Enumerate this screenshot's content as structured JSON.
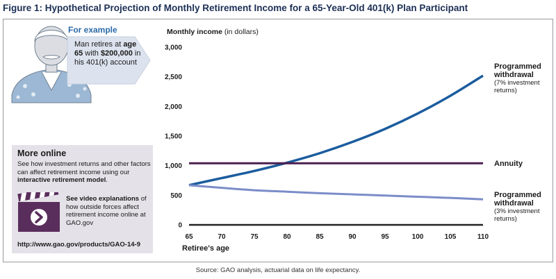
{
  "figure_title": "Figure 1: Hypothetical Projection of Monthly Retirement Income for a 65-Year-Old 401(k) Plan Participant",
  "example": {
    "label": "For example",
    "text_parts": [
      "Man retires at ",
      "age 65",
      " with ",
      "$200,000",
      " in his 401(k) account"
    ]
  },
  "more_online": {
    "title": "More online",
    "text_parts": [
      "See how investment returns and other factors can affect retirement income using our ",
      "interactive retirement model",
      "."
    ],
    "video_parts": [
      "See video explanations",
      " of how outside forces affect retirement income online at GAO.gov"
    ],
    "url": "http://www.gao.gov/products/GAO-14-9",
    "icons": [
      "person-icon",
      "video-clapper-icon",
      "play-icon"
    ]
  },
  "source": "Source: GAO analysis, actuarial data on life expectancy.",
  "colors": {
    "title": "#1c2f55",
    "programmed_7": "#1b5c9e",
    "programmed_3": "#7b8cc8",
    "annuity": "#4a1f4f",
    "axis": "#222222",
    "box_bg": "#e4e1e8"
  },
  "chart_data": {
    "type": "line",
    "ylabel_main": "Monthly income",
    "ylabel_unit": "(in dollars)",
    "xlabel": "Retiree's age",
    "xlim": [
      65,
      110
    ],
    "ylim": [
      0,
      3000
    ],
    "x_ticks": [
      "65",
      "70",
      "75",
      "80",
      "85",
      "90",
      "95",
      "100",
      "105",
      "110"
    ],
    "y_ticks": [
      "0",
      "500",
      "1,000",
      "1,500",
      "2,000",
      "2,500",
      "3,000"
    ],
    "grid": false,
    "series": [
      {
        "name": "Programmed withdrawal",
        "sub": "(7% investment returns)",
        "x": [
          65,
          70,
          75,
          80,
          85,
          90,
          95,
          100,
          105,
          110
        ],
        "values": [
          670,
          790,
          910,
          1050,
          1210,
          1400,
          1620,
          1880,
          2180,
          2520
        ]
      },
      {
        "name": "Annuity",
        "sub": "",
        "x": [
          65,
          110
        ],
        "values": [
          1040,
          1040
        ]
      },
      {
        "name": "Programmed withdrawal",
        "sub": "(3% investment returns)",
        "x": [
          65,
          70,
          75,
          80,
          85,
          90,
          95,
          100,
          105,
          110
        ],
        "values": [
          670,
          625,
          585,
          560,
          535,
          515,
          495,
          475,
          455,
          430
        ]
      }
    ]
  }
}
